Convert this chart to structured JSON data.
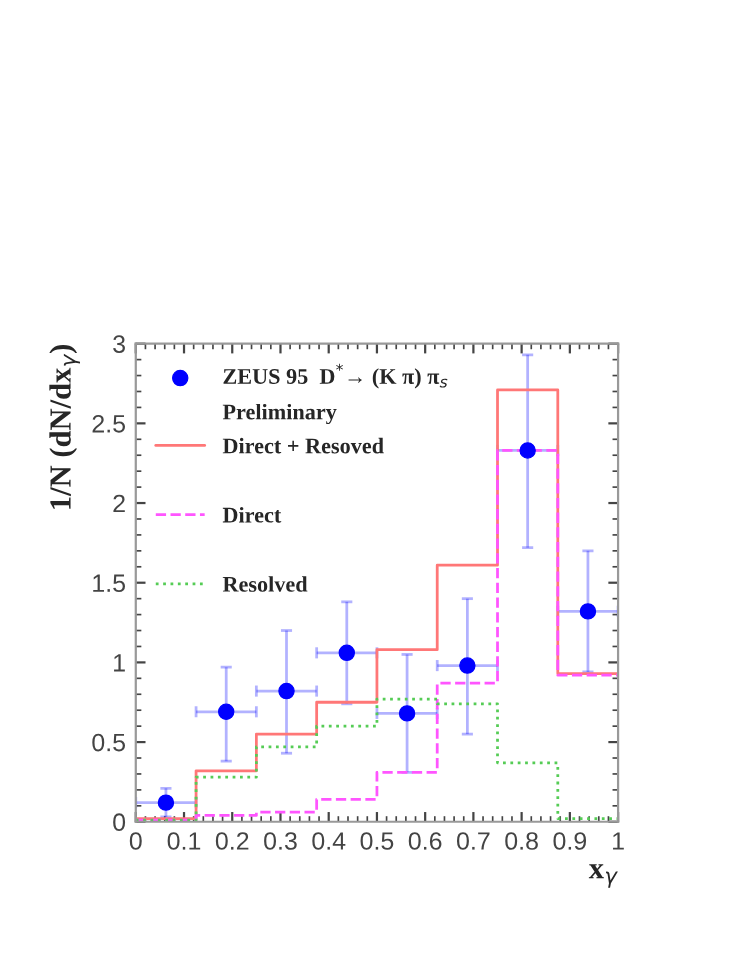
{
  "chart_data": {
    "type": "scatter",
    "xlabel": "x$_{γ}$",
    "ylabel": "1/N (dN/dx$_{γ}$)",
    "xlim": [
      0,
      1
    ],
    "xticks": [
      0,
      0.1,
      0.2,
      0.3,
      0.4,
      0.5,
      0.6,
      0.7,
      0.8,
      0.9,
      1
    ],
    "annotations": [
      "Preliminary"
    ],
    "ylim": [
      0,
      3
    ],
    "yticks": [
      0,
      0.5,
      1,
      1.5,
      2,
      2.5,
      3
    ],
    "legend": "top left",
    "grid": false,
    "series": [
      {
        "name": "ZEUS 95  D$^{*}$→ (K π) π$_{s}$",
        "marker": "circle",
        "color": "#0000ff",
        "x": [
          0.0625,
          0.1875,
          0.3125,
          0.4375,
          0.5625,
          0.6875,
          0.8125,
          0.9375
        ],
        "values": [
          0.12,
          0.69,
          0.82,
          1.06,
          0.68,
          0.98,
          2.33,
          1.32
        ],
        "errors": [
          [
            0.03,
            0.21
          ],
          [
            0.38,
            0.97
          ],
          [
            0.43,
            1.2
          ],
          [
            0.74,
            1.38
          ],
          [
            0.31,
            1.05
          ],
          [
            0.55,
            1.4
          ],
          [
            1.72,
            2.93
          ],
          [
            0.94,
            1.7
          ]
        ],
        "xerrors": [
          0.0625,
          0.0625,
          0.0625,
          0.0625,
          0.0625,
          0.0625,
          0.0625,
          0.0625
        ]
      },
      {
        "name": "Direct + Resoved",
        "type": "step",
        "line_style": "solid",
        "color": "#ff7777",
        "x": [
          0,
          0.125,
          0.25,
          0.375,
          0.5,
          0.625,
          0.75,
          0.875,
          1
        ],
        "values": [
          0.02,
          0.32,
          0.55,
          0.75,
          1.08,
          1.61,
          2.71,
          0.93,
          0.93
        ]
      },
      {
        "name": "Direct",
        "type": "step",
        "line_style": "dashed",
        "color": "#ff55ff",
        "x": [
          0,
          0.125,
          0.25,
          0.375,
          0.5,
          0.625,
          0.75,
          0.875,
          1
        ],
        "values": [
          0.01,
          0.04,
          0.06,
          0.14,
          0.31,
          0.87,
          2.33,
          0.92,
          0.92
        ]
      },
      {
        "name": "Resolved",
        "type": "step",
        "line_style": "dotted",
        "color": "#55cc55",
        "x": [
          0,
          0.125,
          0.25,
          0.375,
          0.5,
          0.625,
          0.75,
          0.875,
          1
        ],
        "values": [
          0.01,
          0.28,
          0.47,
          0.6,
          0.77,
          0.74,
          0.37,
          0.02,
          0.02
        ]
      }
    ]
  }
}
